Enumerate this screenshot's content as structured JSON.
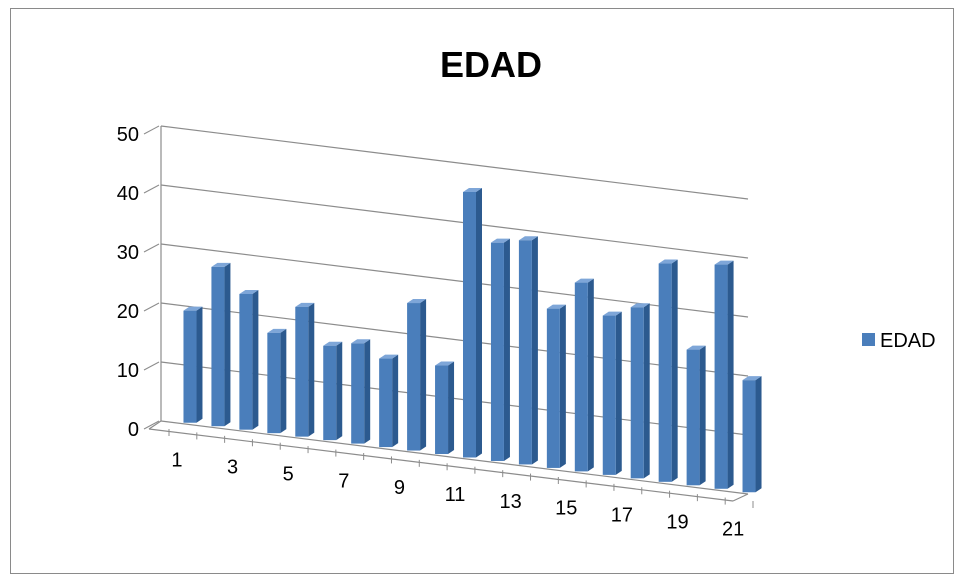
{
  "chart_data": {
    "type": "bar",
    "title": "EDAD",
    "xlabel": "",
    "ylabel": "",
    "ylim": [
      0,
      50
    ],
    "yticks": [
      0,
      10,
      20,
      30,
      40,
      50
    ],
    "categories": [
      "1",
      "2",
      "3",
      "4",
      "5",
      "6",
      "7",
      "8",
      "9",
      "10",
      "11",
      "12",
      "13",
      "14",
      "15",
      "16",
      "17",
      "18",
      "19",
      "20",
      "21"
    ],
    "x_tick_labels_shown": [
      "1",
      "3",
      "5",
      "7",
      "9",
      "11",
      "13",
      "15",
      "17",
      "19",
      "21"
    ],
    "series": [
      {
        "name": "EDAD",
        "values": [
          19,
          27,
          23,
          17,
          22,
          16,
          17,
          15,
          25,
          15,
          45,
          37,
          38,
          27,
          32,
          27,
          29,
          37,
          23,
          38,
          19
        ]
      }
    ],
    "legend": {
      "position": "right",
      "label": "EDAD"
    },
    "grid": true,
    "style": "3d-clustered-column",
    "colors": {
      "bar_front": "#4a7ebb",
      "bar_top": "#7ea6d8",
      "bar_side": "#2c5a8f",
      "gridline": "#8c8c8c"
    }
  }
}
